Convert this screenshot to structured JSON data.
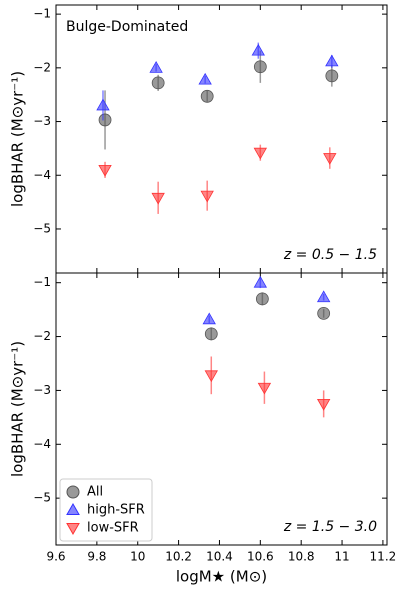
{
  "chart_data": [
    {
      "type": "scatter",
      "ylabel": "logBHAR (M⊙yr⁻¹)",
      "annotations": [
        "Bulge-Dominated",
        "z = 0.5 − 1.5"
      ],
      "xlim": [
        9.6,
        11.22
      ],
      "xticks": [
        9.6,
        9.8,
        10.0,
        10.2,
        10.4,
        10.6,
        10.8,
        11.0,
        11.2
      ],
      "ylim": [
        -5.82,
        -0.83
      ],
      "yticks": [
        {
          "value": -1,
          "label": "−1"
        },
        {
          "value": -2,
          "label": "−2"
        },
        {
          "value": -3,
          "label": "−3"
        },
        {
          "value": -4,
          "label": "−4"
        },
        {
          "value": -5,
          "label": "−5"
        }
      ],
      "series": [
        {
          "marker": "circle",
          "color": "#555555",
          "x": [
            9.84,
            10.1,
            10.34,
            10.6,
            10.95
          ],
          "values": [
            -2.97,
            -2.28,
            -2.53,
            -1.98,
            -2.15
          ],
          "errors": [
            0.55,
            0.15,
            0.1,
            0.3,
            0.2
          ]
        },
        {
          "marker": "triangle-up",
          "color": "#3333ff",
          "x": [
            9.83,
            10.09,
            10.33,
            10.59,
            10.95
          ],
          "values": [
            -2.7,
            -2.0,
            -2.22,
            -1.68,
            -1.88
          ],
          "errors": [
            0.28,
            0.07,
            0.07,
            0.15,
            0.12
          ]
        },
        {
          "marker": "triangle-down",
          "color": "#ff3333",
          "x": [
            9.84,
            10.1,
            10.34,
            10.6,
            10.94
          ],
          "values": [
            -3.9,
            -4.42,
            -4.38,
            -3.58,
            -3.68
          ],
          "errors": [
            0.15,
            0.3,
            0.28,
            0.15,
            0.2
          ]
        }
      ]
    },
    {
      "type": "scatter",
      "ylabel": "logBHAR (M⊙yr⁻¹)",
      "xlabel": "logM★ (M⊙)",
      "annotations": [
        "z = 1.5 − 3.0"
      ],
      "legend": "lower left",
      "xlim": [
        9.6,
        11.22
      ],
      "xticks": [
        9.6,
        9.8,
        10.0,
        10.2,
        10.4,
        10.6,
        10.8,
        11.0,
        11.2
      ],
      "ylim": [
        -5.87,
        -0.82
      ],
      "yticks": [
        {
          "value": -1,
          "label": "−1"
        },
        {
          "value": -2,
          "label": "−2"
        },
        {
          "value": -3,
          "label": "−3"
        },
        {
          "value": -4,
          "label": "−4"
        },
        {
          "value": -5,
          "label": "−5"
        }
      ],
      "series": [
        {
          "name": "All",
          "marker": "circle",
          "color": "#555555",
          "x": [
            10.36,
            10.61,
            10.91
          ],
          "values": [
            -1.95,
            -1.3,
            -1.57
          ],
          "errors": [
            0.12,
            0.12,
            0.08
          ]
        },
        {
          "name": "high-SFR",
          "marker": "triangle-up",
          "color": "#3333ff",
          "x": [
            10.35,
            10.6,
            10.91
          ],
          "values": [
            -1.68,
            -1.0,
            -1.27
          ],
          "errors": [
            0.07,
            0.1,
            0.06
          ]
        },
        {
          "name": "low-SFR",
          "marker": "triangle-down",
          "color": "#ff3333",
          "x": [
            10.36,
            10.62,
            10.91
          ],
          "values": [
            -2.72,
            -2.95,
            -3.25
          ],
          "errors": [
            0.35,
            0.3,
            0.25
          ]
        }
      ]
    }
  ]
}
